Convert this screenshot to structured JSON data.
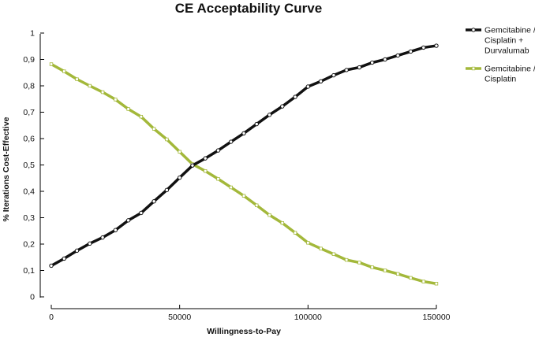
{
  "chart_data": {
    "type": "line",
    "title": "CE Acceptability Curve",
    "xlabel": "Willingness-to-Pay",
    "ylabel": "% Iterations Cost-Effective",
    "xlim": [
      0,
      150000
    ],
    "ylim": [
      0,
      1
    ],
    "x_ticks": [
      0,
      50000,
      100000,
      150000
    ],
    "x_tick_labels": [
      "0",
      "50000",
      "100000",
      "150000"
    ],
    "y_ticks": [
      0,
      0.1,
      0.2,
      0.3,
      0.4,
      0.5,
      0.6,
      0.7,
      0.8,
      0.9,
      1
    ],
    "y_tick_labels": [
      "0",
      "0,1",
      "0,2",
      "0,3",
      "0,4",
      "0,5",
      "0,6",
      "0,7",
      "0,8",
      "0,9",
      "1"
    ],
    "grid": false,
    "legend_position": "top-right",
    "x": [
      0,
      5000,
      10000,
      15000,
      20000,
      25000,
      30000,
      35000,
      40000,
      45000,
      50000,
      55000,
      60000,
      65000,
      70000,
      75000,
      80000,
      85000,
      90000,
      95000,
      100000,
      105000,
      110000,
      115000,
      120000,
      125000,
      130000,
      135000,
      140000,
      145000,
      150000
    ],
    "series": [
      {
        "name": "Gemcitabine / Cisplatin + Durvalumab",
        "legend_lines": [
          "Gemcitabine /",
          "Cisplatin +",
          "Durvalumab"
        ],
        "color": "#111111",
        "marker_fill": "#ffffff",
        "values": [
          0.118,
          0.145,
          0.175,
          0.202,
          0.225,
          0.253,
          0.29,
          0.318,
          0.362,
          0.405,
          0.452,
          0.498,
          0.525,
          0.555,
          0.588,
          0.62,
          0.655,
          0.69,
          0.722,
          0.758,
          0.797,
          0.817,
          0.84,
          0.86,
          0.87,
          0.888,
          0.9,
          0.915,
          0.93,
          0.945,
          0.952
        ]
      },
      {
        "name": "Gemcitabine / Cisplatin",
        "legend_lines": [
          "Gemcitabine /",
          "Cisplatin"
        ],
        "color": "#a3b83a",
        "marker_fill": "#ffffff",
        "values": [
          0.882,
          0.855,
          0.825,
          0.8,
          0.776,
          0.748,
          0.712,
          0.683,
          0.637,
          0.597,
          0.55,
          0.503,
          0.477,
          0.447,
          0.415,
          0.383,
          0.347,
          0.31,
          0.28,
          0.243,
          0.205,
          0.183,
          0.162,
          0.14,
          0.13,
          0.112,
          0.1,
          0.087,
          0.072,
          0.058,
          0.05
        ]
      }
    ]
  }
}
